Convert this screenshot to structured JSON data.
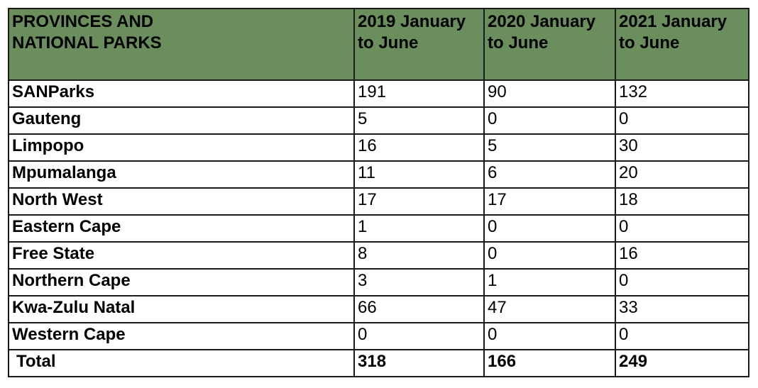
{
  "table": {
    "headers": [
      "PROVINCES AND NATIONAL PARKS",
      "2019 January to June",
      "2020 January to June",
      "2021 January to June"
    ],
    "rows": [
      [
        "SANParks",
        "191",
        "90",
        "132"
      ],
      [
        "Gauteng",
        "5",
        "0",
        "0"
      ],
      [
        "Limpopo",
        "16",
        "5",
        "30"
      ],
      [
        "Mpumalanga",
        "11",
        "6",
        "20"
      ],
      [
        "North West",
        "17",
        "17",
        "18"
      ],
      [
        "Eastern Cape",
        "1",
        "0",
        "0"
      ],
      [
        "Free State",
        "8",
        "0",
        "16"
      ],
      [
        "Northern Cape",
        "3",
        "1",
        "0"
      ],
      [
        "Kwa-Zulu Natal",
        "66",
        "47",
        "33"
      ],
      [
        "Western Cape",
        "0",
        "0",
        "0"
      ]
    ],
    "total": [
      "Total",
      "318",
      "166",
      "249"
    ]
  },
  "colors": {
    "header_background": "#6a8f5c",
    "border": "#1a1a1a"
  }
}
